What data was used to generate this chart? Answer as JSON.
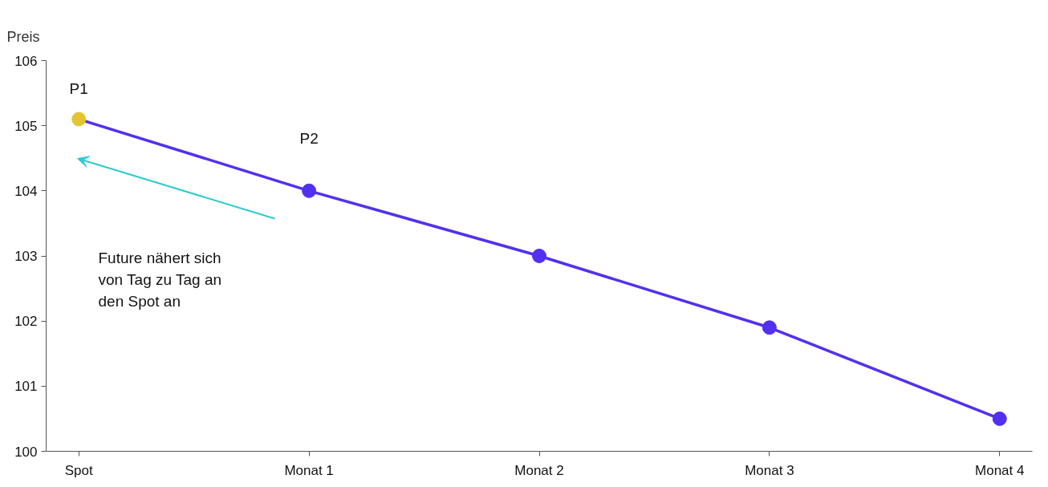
{
  "chart_data": {
    "type": "line",
    "ylabel": "Preis",
    "categories": [
      "Spot",
      "Monat 1",
      "Monat 2",
      "Monat 3",
      "Monat 4"
    ],
    "series": [
      {
        "color": "#5230f0",
        "colors": [
          "#e2c531",
          "#5230f0",
          "#5230f0",
          "#5230f0",
          "#5230f0"
        ],
        "values": [
          105.1,
          104.0,
          103.0,
          101.9,
          100.5
        ]
      }
    ],
    "ylim": [
      100,
      106
    ],
    "yticks": [
      100,
      101,
      102,
      103,
      104,
      105,
      106
    ],
    "grid": false,
    "marker": "circle",
    "line_style": "solid",
    "annotations": [
      {
        "text": "P1",
        "x": "Spot",
        "y": 105.1
      },
      {
        "text": "P2",
        "x": "Monat 1",
        "y": 104.0
      },
      "Future nähert sich\nvon Tag zu Tag an\nden Spot an"
    ]
  }
}
